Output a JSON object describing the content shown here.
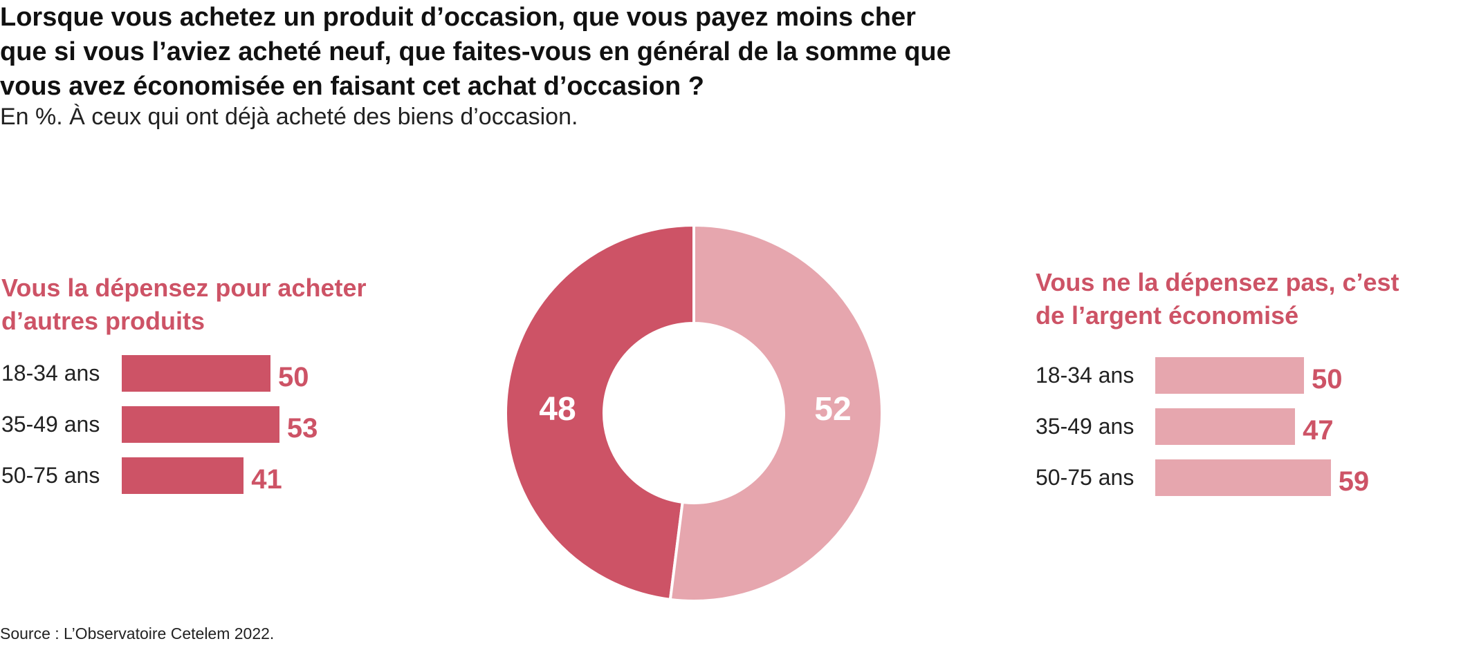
{
  "title": "Lorsque vous achetez un produit d’occasion, que vous payez moins cher que si vous l’aviez acheté neuf, que faites-vous en général de la somme que vous avez économisée en faisant cet achat d’occasion ?",
  "subtitle": "En %. À ceux qui ont déjà acheté des biens d’occasion.",
  "source": "Source : L’Observatoire Cetelem 2022.",
  "colors": {
    "dark": "#cd5366",
    "light": "#e6a6ae"
  },
  "chart_data": [
    {
      "type": "pie",
      "style": "donut",
      "categories": [
        "Vous la dépensez pour acheter d’autres produits",
        "Vous ne la dépensez pas, c’est de l’argent économisé"
      ],
      "values": [
        48,
        52
      ],
      "labels": [
        "48",
        "52"
      ]
    },
    {
      "type": "bar",
      "orientation": "horizontal",
      "title": "Vous la dépensez pour acheter d’autres produits",
      "categories": [
        "18-34 ans",
        "35-49 ans",
        "50-75 ans"
      ],
      "values": [
        50,
        53,
        41
      ],
      "labels": [
        "50",
        "53",
        "41"
      ]
    },
    {
      "type": "bar",
      "orientation": "horizontal",
      "title": "Vous ne la dépensez pas, c’est de l’argent économisé",
      "categories": [
        "18-34 ans",
        "35-49 ans",
        "50-75 ans"
      ],
      "values": [
        50,
        47,
        59
      ],
      "labels": [
        "50",
        "47",
        "59"
      ]
    }
  ]
}
